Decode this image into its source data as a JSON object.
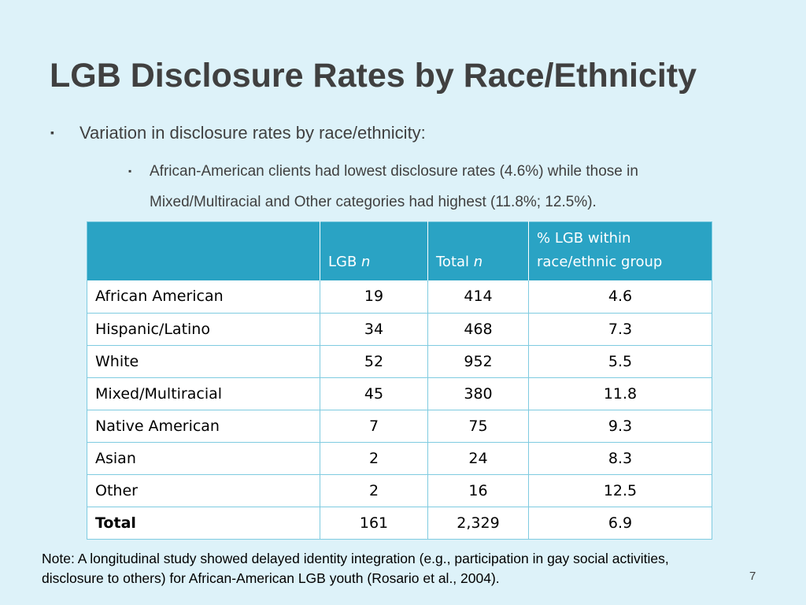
{
  "title": "LGB Disclosure Rates by Race/Ethnicity",
  "bullet1": {
    "marker": "▪",
    "text": "Variation in disclosure rates by race/ethnicity:"
  },
  "bullet2": {
    "marker": "▪",
    "text": "African-American clients had lowest disclosure rates (4.6%) while those in Mixed/Multiracial and Other categories had highest (11.8%; 12.5%)."
  },
  "table": {
    "headers": {
      "group": "",
      "lgb_label": "LGB ",
      "lgb_italic": "n",
      "total_label": "Total ",
      "total_italic": "n",
      "pct_line1": "% LGB within",
      "pct_line2": "race/ethnic group"
    },
    "rows": [
      {
        "group": "African American",
        "lgb": "19",
        "total": "414",
        "pct": "4.6"
      },
      {
        "group": "Hispanic/Latino",
        "lgb": "34",
        "total": "468",
        "pct": "7.3"
      },
      {
        "group": "White",
        "lgb": "52",
        "total": "952",
        "pct": "5.5"
      },
      {
        "group": "Mixed/Multiracial",
        "lgb": "45",
        "total": "380",
        "pct": "11.8"
      },
      {
        "group": "Native American",
        "lgb": "7",
        "total": "75",
        "pct": "9.3"
      },
      {
        "group": "Asian",
        "lgb": "2",
        "total": "24",
        "pct": "8.3"
      },
      {
        "group": "Other",
        "lgb": "2",
        "total": "16",
        "pct": "12.5"
      },
      {
        "group": "Total",
        "lgb": "161",
        "total": "2,329",
        "pct": "6.9"
      }
    ]
  },
  "note": "Note: A longitudinal study showed delayed identity integration (e.g., participation in gay social activities, disclosure to others) for African-American LGB youth (Rosario et al., 2004).",
  "page_number": "7",
  "colors": {
    "background": "#ddf2f9",
    "header_fill": "#2aa3c4",
    "grid_line": "#7fcbe0",
    "title_text": "#404040"
  }
}
